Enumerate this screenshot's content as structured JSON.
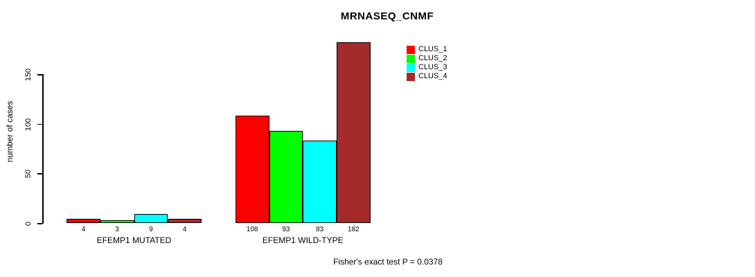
{
  "chart_data": {
    "type": "bar",
    "title": "MRNASEQ_CNMF",
    "ylabel": "number of cases",
    "xlabel": "",
    "yticks": [
      0,
      50,
      100,
      150
    ],
    "ylim": [
      0,
      190
    ],
    "grid": false,
    "legend_position": "top-right-inside",
    "categories": [
      "EFEMP1 MUTATED",
      "EFEMP1 WILD-TYPE"
    ],
    "series": [
      {
        "name": "CLUS_1",
        "color": "#FF0000",
        "values": [
          4,
          108
        ]
      },
      {
        "name": "CLUS_2",
        "color": "#00FF00",
        "values": [
          3,
          93
        ]
      },
      {
        "name": "CLUS_3",
        "color": "#00FFFF",
        "values": [
          9,
          83
        ]
      },
      {
        "name": "CLUS_4",
        "color": "#A52A2A",
        "values": [
          4,
          182
        ]
      }
    ],
    "groups": [
      {
        "label": "EFEMP1 MUTATED",
        "values": [
          4,
          3,
          9,
          4
        ],
        "value_labels": [
          "4",
          "3",
          "9",
          "4"
        ]
      },
      {
        "label": "EFEMP1 WILD-TYPE",
        "values": [
          108,
          93,
          83,
          182
        ],
        "value_labels": [
          "108",
          "93",
          "83",
          "182"
        ]
      }
    ],
    "legend": [
      {
        "label": "CLUS_1",
        "color": "#FF0000"
      },
      {
        "label": "CLUS_2",
        "color": "#00FF00"
      },
      {
        "label": "CLUS_3",
        "color": "#00FFFF"
      },
      {
        "label": "CLUS_4",
        "color": "#A52A2A"
      }
    ],
    "annotation": "Fisher's exact test P = 0.0378",
    "axis_color": "#000000",
    "bar_border_color": "#000000"
  }
}
